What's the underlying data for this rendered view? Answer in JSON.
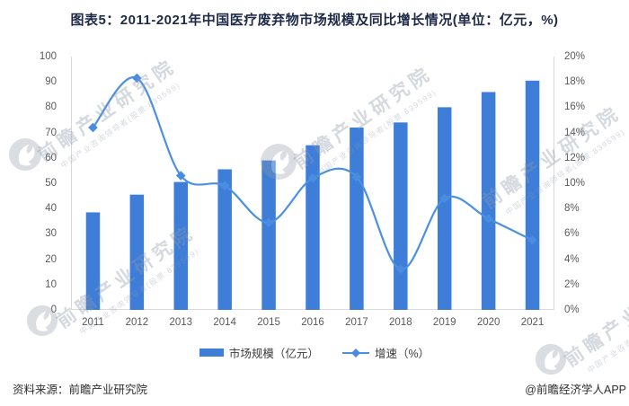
{
  "title": "图表5：2011-2021年中国医疗废弃物市场规模及同比增长情况(单位：亿元，%)",
  "chart_data": {
    "type": "bar",
    "subtype": "bar+line combo, dual axis",
    "categories": [
      "2011",
      "2012",
      "2013",
      "2014",
      "2015",
      "2016",
      "2017",
      "2018",
      "2019",
      "2020",
      "2021"
    ],
    "series": [
      {
        "name": "市场规模（亿元）",
        "type": "bar",
        "axis": "left",
        "values": [
          38.5,
          45.5,
          50.5,
          55.5,
          59,
          65,
          72,
          74,
          80,
          86,
          90.5
        ]
      },
      {
        "name": "增速（%）",
        "type": "line",
        "axis": "right",
        "marker": "diamond",
        "values": [
          14.4,
          18.3,
          10.6,
          9.8,
          6.9,
          10.4,
          10.5,
          3.2,
          8.8,
          7.2,
          5.5
        ]
      }
    ],
    "title": "图表5：2011-2021年中国医疗废弃物市场规模及同比增长情况(单位：亿元，%)",
    "xlabel": "",
    "ylabel": "",
    "left_axis": {
      "min": 0,
      "max": 100,
      "step": 10
    },
    "right_axis": {
      "min": 0,
      "max": 20,
      "step": 2,
      "suffix": "%"
    },
    "grid": false,
    "legend_position": "bottom",
    "smooth_line": true
  },
  "legend": {
    "market_label": "市场规模（亿元）",
    "growth_label": "增速（%）"
  },
  "footer": {
    "source": "资料来源：前瞻产业研究院",
    "app": "@前瞻经济学人APP"
  },
  "watermark": {
    "main": "前瞻产业研究院",
    "sub": "中国产业咨询领导者(股票:839599)"
  },
  "colors": {
    "bar": "#3e7dd8",
    "line": "#4b90e2",
    "marker": "#4a8de0",
    "axis_line": "#d9d9d9",
    "axis_text": "#595959",
    "title_text": "#1e2a47"
  }
}
